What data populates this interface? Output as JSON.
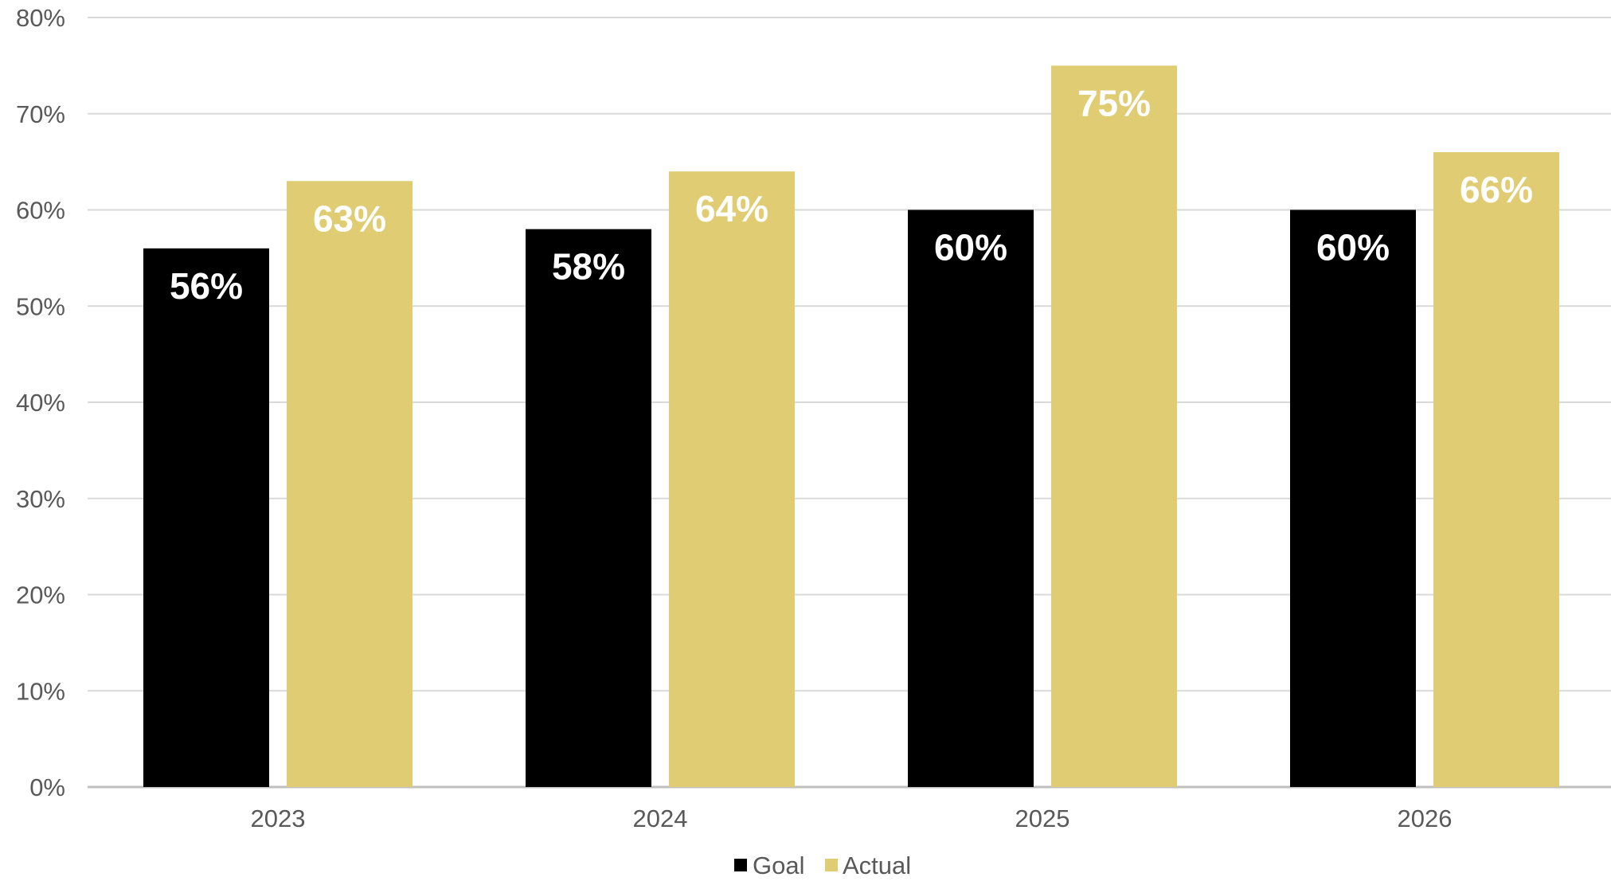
{
  "chart_data": {
    "type": "bar",
    "categories": [
      "2023",
      "2024",
      "2025",
      "2026"
    ],
    "series": [
      {
        "name": "Goal",
        "values": [
          56,
          58,
          60,
          60
        ],
        "labels": [
          "56%",
          "58%",
          "60%",
          "60%"
        ],
        "color": "#000000"
      },
      {
        "name": "Actual",
        "values": [
          63,
          64,
          75,
          66
        ],
        "labels": [
          "63%",
          "64%",
          "75%",
          "66%"
        ],
        "color": "#E0CC72"
      }
    ],
    "ylim": [
      0,
      80
    ],
    "yticks": [
      0,
      10,
      20,
      30,
      40,
      50,
      60,
      70,
      80
    ],
    "ytick_labels": [
      "0%",
      "10%",
      "20%",
      "30%",
      "40%",
      "50%",
      "60%",
      "70%",
      "80%"
    ],
    "grid": true,
    "grid_color": "#D9D9D9",
    "legend": "bottom-center",
    "title": "",
    "xlabel": "",
    "ylabel": ""
  }
}
